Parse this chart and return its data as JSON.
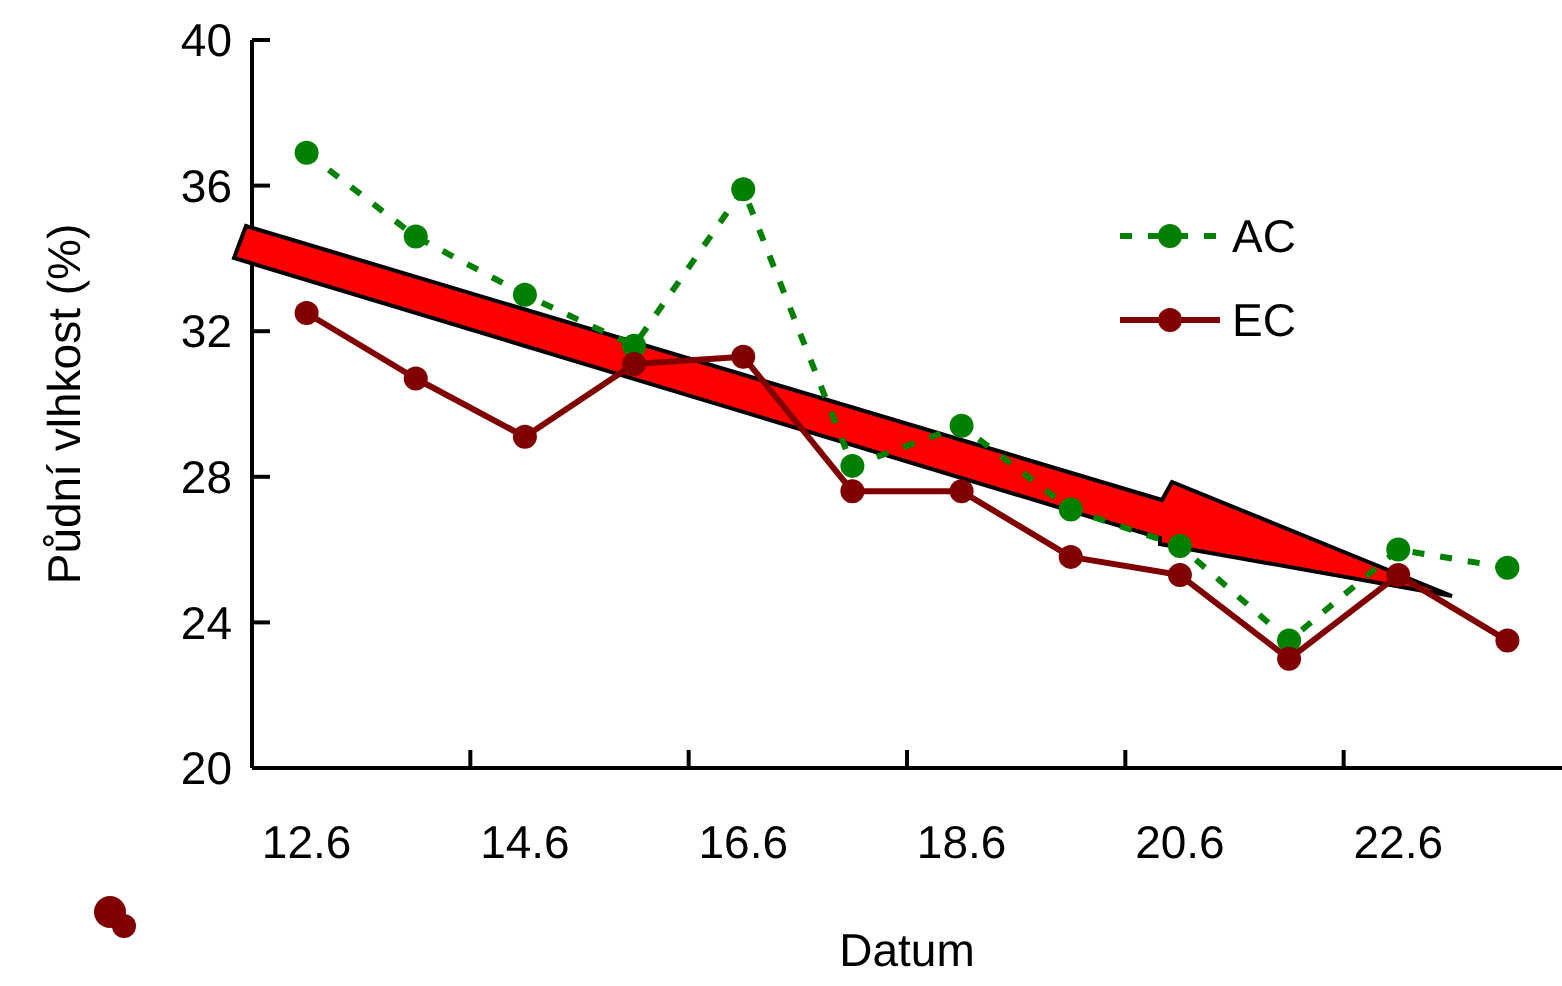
{
  "chart_data": {
    "type": "line",
    "xlabel": "Datum",
    "ylabel": "Půdní vlhkost (%)",
    "categories": [
      "12.6",
      null,
      "14.6",
      null,
      "16.6",
      null,
      "18.6",
      null,
      "20.6",
      null,
      "22.6",
      null
    ],
    "series": [
      {
        "name": "AC",
        "color": "#008000",
        "line_style": "dashed",
        "values": [
          36.9,
          34.6,
          33.0,
          31.6,
          35.9,
          28.3,
          29.4,
          27.1,
          26.1,
          23.5,
          26.0,
          25.5
        ]
      },
      {
        "name": "EC",
        "color": "#800000",
        "line_style": "solid",
        "values": [
          32.5,
          30.7,
          29.1,
          31.1,
          31.3,
          27.6,
          27.6,
          25.8,
          25.3,
          23.0,
          25.3,
          23.5
        ]
      }
    ],
    "ylim": [
      20,
      40
    ],
    "yticks": [
      20,
      24,
      28,
      32,
      36,
      40
    ],
    "marker": "circle",
    "legend": "top right",
    "grid": false
  }
}
